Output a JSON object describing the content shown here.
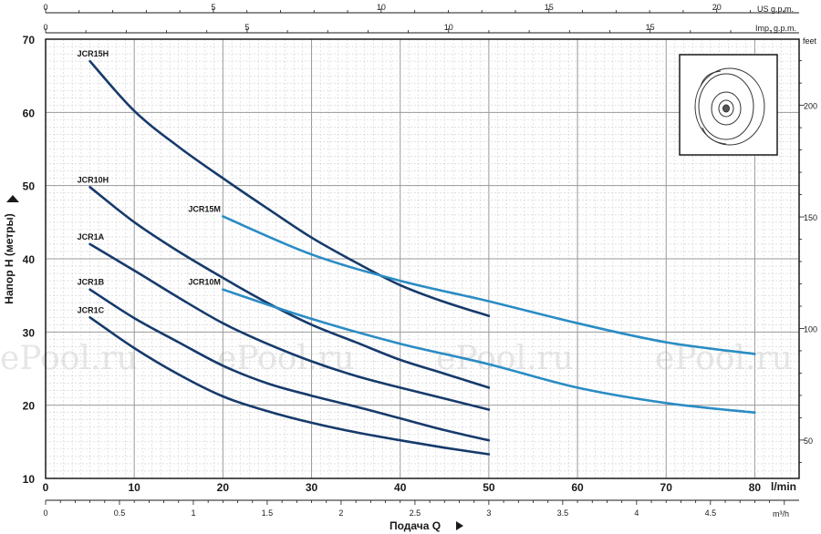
{
  "chart_data": {
    "type": "line",
    "title": "",
    "ylabel": "Напор H (метры)",
    "xlabel": "Подача Q",
    "ylim": [
      10,
      70
    ],
    "xlim_lmin": [
      0,
      85
    ],
    "yticks": [
      10,
      20,
      30,
      40,
      50,
      60,
      70
    ],
    "xticks_lmin": [
      0,
      10,
      20,
      30,
      40,
      50,
      60,
      70,
      80
    ],
    "xunit_lmin": "l/min",
    "xticks_m3h": [
      "0",
      "0.5",
      "1",
      "1.5",
      "2",
      "2.5",
      "3",
      "3.5",
      "4",
      "4.5"
    ],
    "xunit_m3h": "m³/h",
    "top_axis_us": {
      "unit": "US g.p.m.",
      "ticks": [
        "0",
        "5",
        "10",
        "15",
        "20"
      ]
    },
    "top_axis_imp": {
      "unit": "Imp. g.p.m.",
      "ticks": [
        "0",
        "5",
        "10",
        "15"
      ]
    },
    "right_axis_feet": {
      "unit": "feet",
      "ticks": [
        "50",
        "100",
        "150",
        "200"
      ]
    },
    "grid": true,
    "watermark": "ePool.ru",
    "series": [
      {
        "name": "JCR15H",
        "color": "#163a6b",
        "x": [
          5,
          10,
          15,
          20,
          25,
          30,
          35,
          40,
          45,
          50
        ],
        "y": [
          67,
          60.2,
          55.3,
          51,
          46.9,
          42.9,
          39.5,
          36.4,
          34.1,
          32.2
        ]
      },
      {
        "name": "JCR10H",
        "color": "#163a6b",
        "x": [
          5,
          10,
          15,
          20,
          25,
          30,
          35,
          40,
          45,
          50
        ],
        "y": [
          49.8,
          45,
          41,
          37.4,
          34,
          31,
          28.6,
          26.2,
          24.3,
          22.4
        ]
      },
      {
        "name": "JCR1A",
        "color": "#163a6b",
        "x": [
          5,
          10,
          15,
          20,
          25,
          30,
          35,
          40,
          45,
          50
        ],
        "y": [
          42,
          38.4,
          34.7,
          31.2,
          28.4,
          26,
          24,
          22.4,
          20.9,
          19.4
        ]
      },
      {
        "name": "JCR1B",
        "color": "#163a6b",
        "x": [
          5,
          10,
          15,
          20,
          25,
          30,
          35,
          40,
          45,
          50
        ],
        "y": [
          35.8,
          31.9,
          28.6,
          25.4,
          23,
          21.3,
          19.8,
          18.2,
          16.6,
          15.2
        ]
      },
      {
        "name": "JCR1C",
        "color": "#163a6b",
        "x": [
          5,
          10,
          15,
          20,
          25,
          30,
          35,
          40,
          45,
          50
        ],
        "y": [
          32,
          27.8,
          24.2,
          21.2,
          19.2,
          17.6,
          16.3,
          15.2,
          14.2,
          13.3
        ]
      },
      {
        "name": "JCR15M",
        "color": "#2a8cc4",
        "x": [
          20,
          30,
          40,
          50,
          60,
          70,
          80
        ],
        "y": [
          45.8,
          40.6,
          37,
          34.2,
          31.2,
          28.6,
          27
        ]
      },
      {
        "name": "JCR10M",
        "color": "#2a8cc4",
        "x": [
          20,
          30,
          40,
          50,
          60,
          70,
          80
        ],
        "y": [
          35.8,
          31.8,
          28.4,
          25.6,
          22.4,
          20.3,
          19
        ]
      }
    ],
    "curve_labels": [
      "JCR15H",
      "JCR10H",
      "JCR1A",
      "JCR1B",
      "JCR1C",
      "JCR15M",
      "JCR10M"
    ]
  }
}
